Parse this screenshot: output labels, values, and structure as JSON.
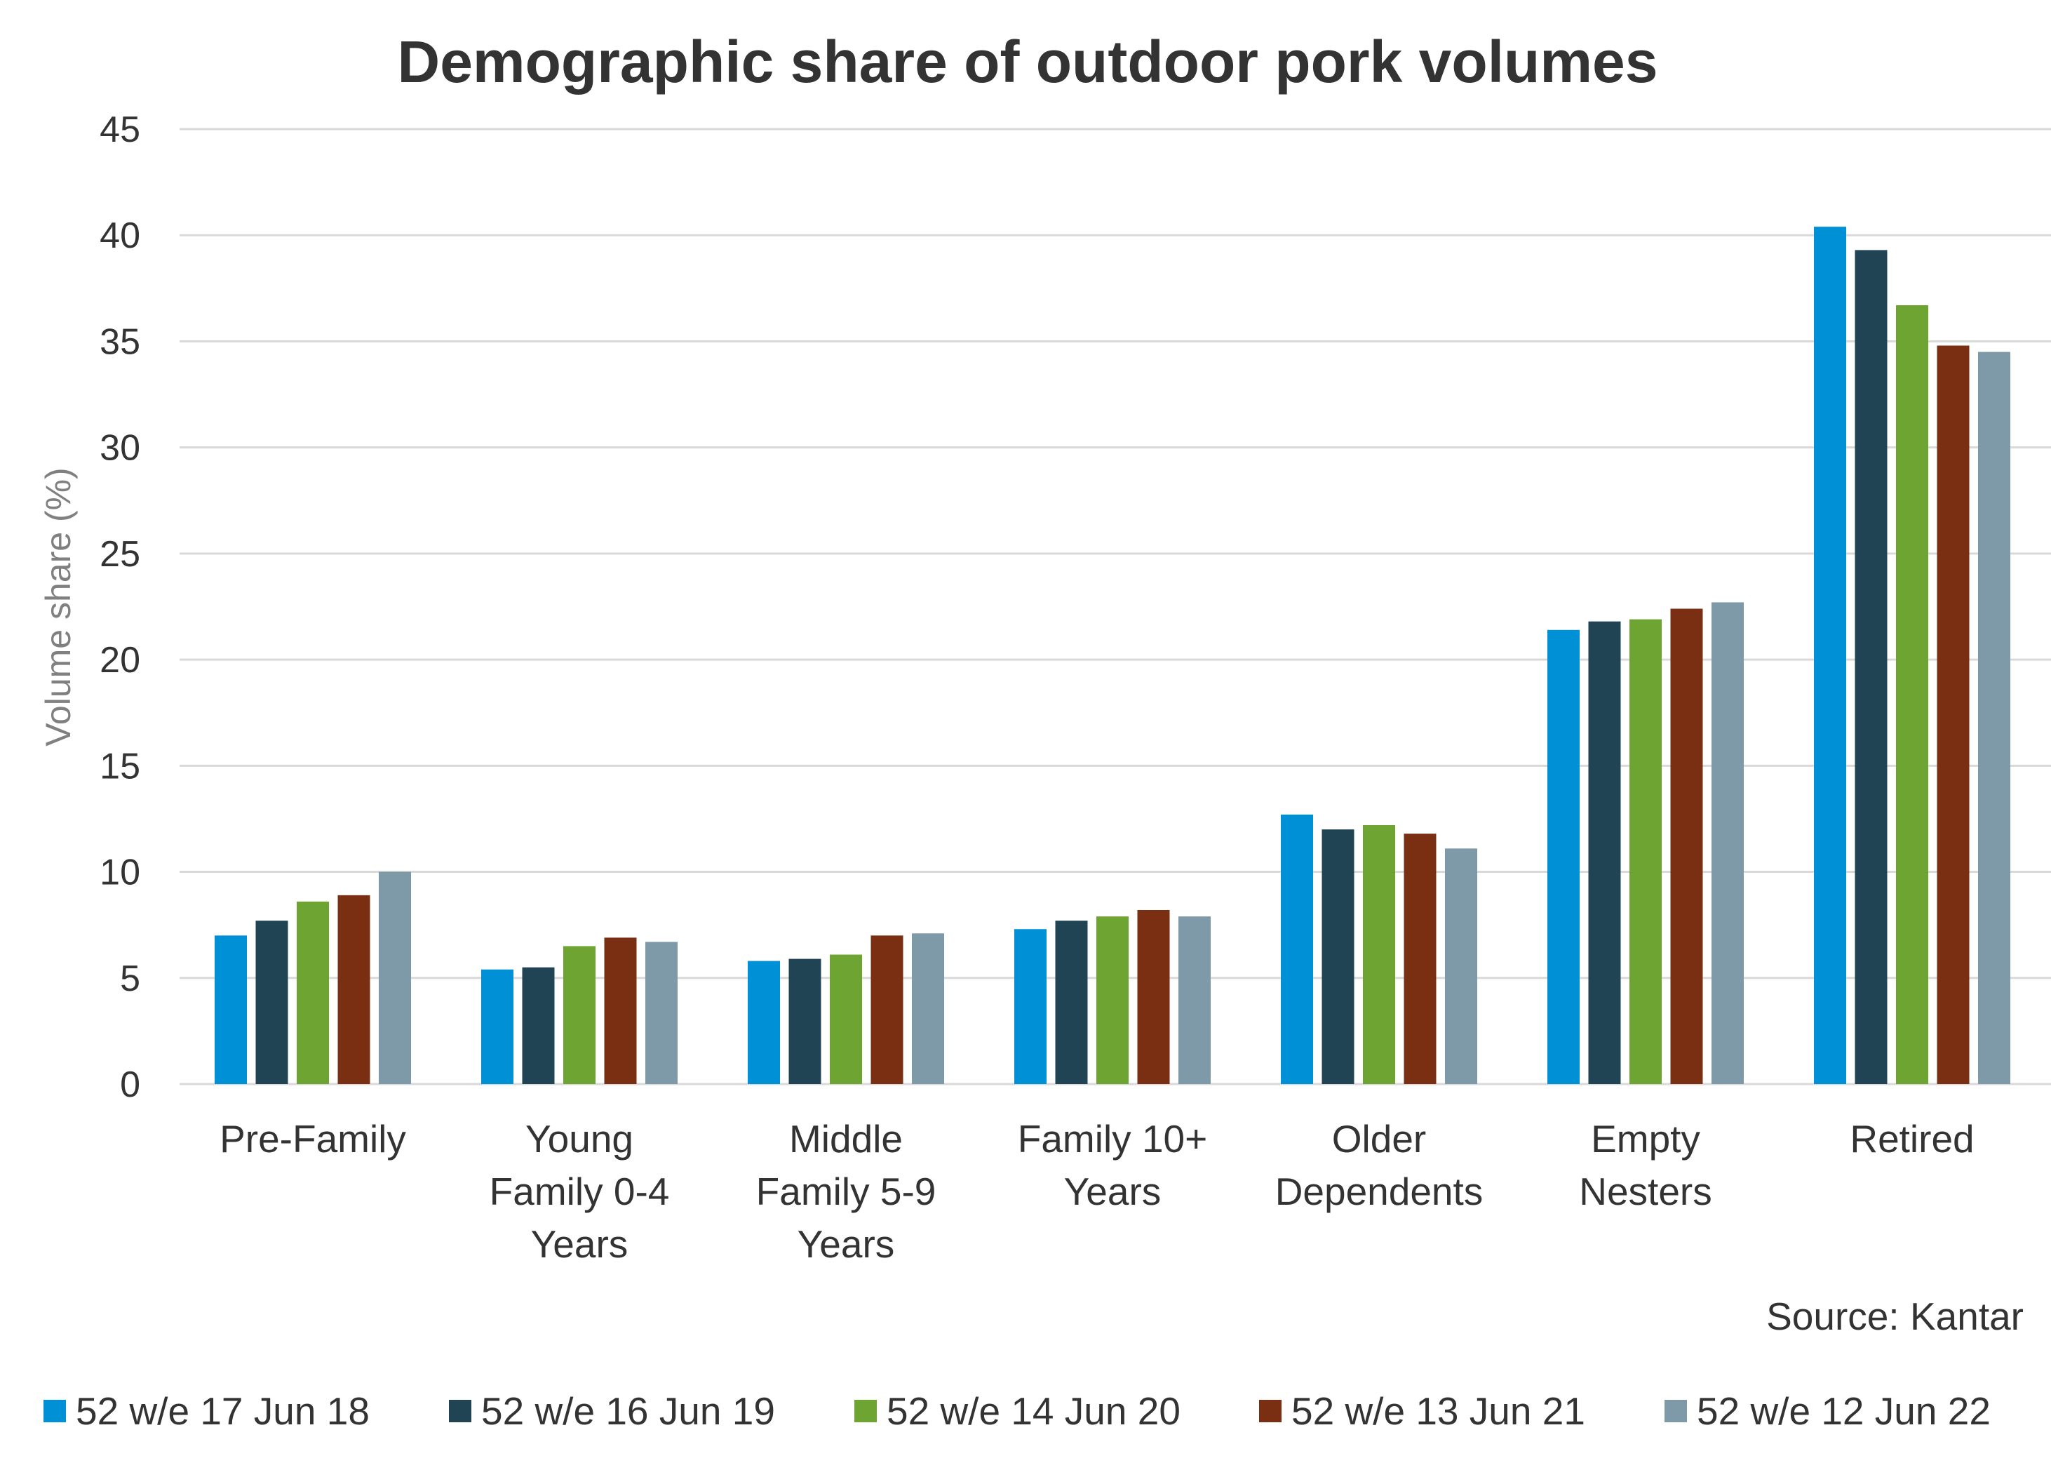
{
  "chart_data": {
    "type": "bar",
    "title": "Demographic share of outdoor pork volumes",
    "xlabel": "",
    "ylabel": "Volume share (%)",
    "ylim": [
      0,
      45
    ],
    "yticks": [
      0,
      5,
      10,
      15,
      20,
      25,
      30,
      35,
      40,
      45
    ],
    "grid": true,
    "legend_position": "bottom",
    "source": "Source: Kantar",
    "categories": [
      [
        "Pre-Family"
      ],
      [
        "Young",
        "Family 0-4",
        "Years"
      ],
      [
        "Middle",
        "Family 5-9",
        "Years"
      ],
      [
        "Family 10+",
        "Years"
      ],
      [
        "Older",
        "Dependents"
      ],
      [
        "Empty",
        "Nesters"
      ],
      [
        "Retired"
      ]
    ],
    "category_names": [
      "Pre-Family",
      "Young Family 0-4 Years",
      "Middle Family 5-9 Years",
      "Family 10+ Years",
      "Older Dependents",
      "Empty Nesters",
      "Retired"
    ],
    "series": [
      {
        "name": "52 w/e 17 Jun 18",
        "color": "#0090d6",
        "values": [
          7.0,
          5.4,
          5.8,
          7.3,
          12.7,
          21.4,
          40.4
        ]
      },
      {
        "name": "52 w/e 16 Jun 19",
        "color": "#214455",
        "values": [
          7.7,
          5.5,
          5.9,
          7.7,
          12.0,
          21.8,
          39.3
        ]
      },
      {
        "name": "52 w/e 14 Jun 20",
        "color": "#6ea431",
        "values": [
          8.6,
          6.5,
          6.1,
          7.9,
          12.2,
          21.9,
          36.7
        ]
      },
      {
        "name": "52 w/e 13 Jun 21",
        "color": "#7b2f12",
        "values": [
          8.9,
          6.9,
          7.0,
          8.2,
          11.8,
          22.4,
          34.8
        ]
      },
      {
        "name": "52 w/e 12 Jun 22",
        "color": "#7e99a7",
        "values": [
          10.0,
          6.7,
          7.1,
          7.9,
          11.1,
          22.7,
          34.5
        ]
      }
    ]
  }
}
